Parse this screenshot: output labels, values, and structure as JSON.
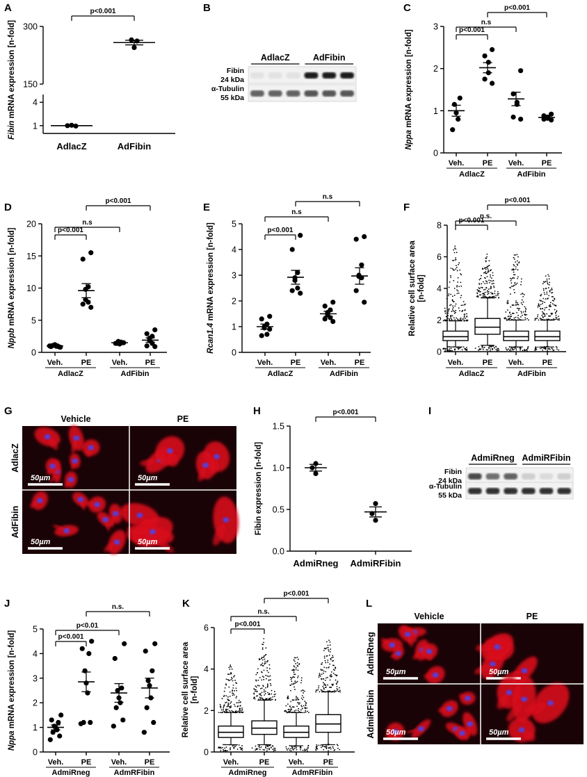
{
  "panel_letters": [
    "A",
    "B",
    "C",
    "D",
    "E",
    "F",
    "G",
    "H",
    "I",
    "J",
    "K",
    "L"
  ],
  "chart_data": [
    {
      "panel": "A",
      "type": "scatter",
      "ylabel_gene": "Fibin",
      "ylabel_rest": " mRNA expression [n-fold]",
      "categories": [
        "AdlacZ",
        "AdFibin"
      ],
      "axis_break": true,
      "y_ticks_upper": [
        "150",
        "300"
      ],
      "y_ticks_lower": [
        "1",
        "4"
      ],
      "ylim_lower": [
        0,
        5
      ],
      "ylim_upper": [
        150,
        300
      ],
      "series": [
        {
          "points": [
            1.0,
            1.05,
            0.95
          ],
          "mean": 1.0,
          "sem": 0.03
        },
        {
          "points": [
            265,
            262,
            245
          ],
          "mean": 258,
          "sem": 6
        }
      ],
      "comparisons": [
        {
          "from": 0,
          "to": 1,
          "label": "p<0.001"
        }
      ]
    },
    {
      "panel": "C",
      "type": "scatter",
      "ylabel_gene": "Nppa",
      "ylabel_rest": " mRNA expression [n-fold]",
      "conditions": [
        "Veh.",
        "PE",
        "Veh.",
        "PE"
      ],
      "groups": [
        "AdlacZ",
        "AdFibin"
      ],
      "ylim": [
        0,
        3
      ],
      "y_ticks": [
        0,
        1,
        2,
        3
      ],
      "series": [
        {
          "points": [
            1.3,
            1.15,
            0.95,
            0.8,
            0.55
          ],
          "mean": 1.0,
          "sem": 0.13
        },
        {
          "points": [
            2.45,
            2.3,
            2.15,
            1.9,
            1.75,
            1.65
          ],
          "mean": 2.02,
          "sem": 0.12
        },
        {
          "points": [
            1.95,
            1.4,
            1.2,
            1.15,
            0.85,
            0.8
          ],
          "mean": 1.28,
          "sem": 0.16
        },
        {
          "points": [
            0.92,
            0.88,
            0.85,
            0.82,
            0.8,
            0.78
          ],
          "mean": 0.84,
          "sem": 0.03
        }
      ],
      "comparisons": [
        {
          "from": 0,
          "to": 1,
          "label": "p<0.001"
        },
        {
          "from": 0,
          "to": 2,
          "label": "n.s"
        },
        {
          "from": 1,
          "to": 3,
          "label": "p<0.001"
        }
      ]
    },
    {
      "panel": "D",
      "type": "scatter",
      "ylabel_gene": "Nppb",
      "ylabel_rest": " mRNA expression [n-fold]",
      "conditions": [
        "Veh.",
        "PE",
        "Veh.",
        "PE"
      ],
      "groups": [
        "AdlacZ",
        "AdFibin"
      ],
      "ylim": [
        0,
        20
      ],
      "y_ticks": [
        0,
        5,
        10,
        15,
        20
      ],
      "series": [
        {
          "points": [
            0.8,
            0.9,
            1.0,
            1.1,
            1.2,
            0.95,
            1.05,
            0.85,
            1.0
          ],
          "mean": 1.0,
          "sem": 0.05
        },
        {
          "points": [
            15.5,
            14.5,
            10.2,
            9.8,
            8.2,
            7.8,
            7.5,
            7.0
          ],
          "mean": 9.6,
          "sem": 1.1
        },
        {
          "points": [
            1.5,
            1.4,
            1.6,
            1.3,
            1.7,
            1.5,
            1.4
          ],
          "mean": 1.5,
          "sem": 0.05
        },
        {
          "points": [
            3.5,
            2.9,
            2.5,
            2.2,
            1.8,
            1.4,
            1.0,
            0.9
          ],
          "mean": 1.9,
          "sem": 0.35
        }
      ],
      "comparisons": [
        {
          "from": 0,
          "to": 1,
          "label": "p<0.001"
        },
        {
          "from": 0,
          "to": 2,
          "label": "n.s"
        },
        {
          "from": 1,
          "to": 3,
          "label": "p<0.001"
        }
      ]
    },
    {
      "panel": "E",
      "type": "scatter",
      "ylabel_gene": "Rcan1.4",
      "ylabel_rest": " mRNA expression [n-fold]",
      "conditions": [
        "Veh.",
        "PE",
        "Veh.",
        "PE"
      ],
      "groups": [
        "AdlacZ",
        "AdFibin"
      ],
      "ylim": [
        0,
        5
      ],
      "y_ticks": [
        0,
        1,
        2,
        3,
        4,
        5
      ],
      "series": [
        {
          "points": [
            1.4,
            1.3,
            1.1,
            1.0,
            0.95,
            0.7,
            0.65,
            0.9
          ],
          "mean": 1.0,
          "sem": 0.1
        },
        {
          "points": [
            4.55,
            4.0,
            3.1,
            2.9,
            2.8,
            2.5,
            2.4,
            2.3
          ],
          "mean": 2.92,
          "sem": 0.27
        },
        {
          "points": [
            1.95,
            1.8,
            1.65,
            1.55,
            1.45,
            1.35,
            1.3,
            1.2
          ],
          "mean": 1.5,
          "sem": 0.1
        },
        {
          "points": [
            4.5,
            4.4,
            3.4,
            3.0,
            2.95,
            2.9,
            2.4,
            1.95
          ],
          "mean": 2.97,
          "sem": 0.32
        }
      ],
      "comparisons": [
        {
          "from": 0,
          "to": 1,
          "label": "p<0.001"
        },
        {
          "from": 0,
          "to": 2,
          "label": "n.s"
        },
        {
          "from": 1,
          "to": 3,
          "label": "n.s"
        }
      ]
    },
    {
      "panel": "F",
      "type": "box",
      "ylabel": "Relative cell surface area",
      "ylabel2": "[n-fold]",
      "conditions": [
        "Veh.",
        "PE",
        "Veh.",
        "PE"
      ],
      "groups": [
        "AdlacZ",
        "AdFibin"
      ],
      "ylim": [
        0,
        8
      ],
      "y_ticks": [
        0,
        2,
        4,
        6,
        8
      ],
      "boxes": [
        {
          "whisker_low": 0.3,
          "q1": 0.7,
          "median": 0.95,
          "q3": 1.3,
          "whisker_high": 1.95,
          "outlier_max": 6.7
        },
        {
          "whisker_low": 0.4,
          "q1": 1.1,
          "median": 1.55,
          "q3": 2.1,
          "whisker_high": 3.4,
          "outlier_max": 6.2
        },
        {
          "whisker_low": 0.3,
          "q1": 0.7,
          "median": 0.95,
          "q3": 1.3,
          "whisker_high": 2.0,
          "outlier_max": 6.2
        },
        {
          "whisker_low": 0.3,
          "q1": 0.7,
          "median": 0.95,
          "q3": 1.3,
          "whisker_high": 2.0,
          "outlier_max": 5.0
        }
      ],
      "comparisons": [
        {
          "from": 0,
          "to": 1,
          "label": "p<0.001"
        },
        {
          "from": 0,
          "to": 2,
          "label": "n.s."
        },
        {
          "from": 1,
          "to": 3,
          "label": "p<0.001"
        }
      ]
    },
    {
      "panel": "H",
      "type": "scatter",
      "ylabel": "Fibin expression [n-fold]",
      "categories": [
        "AdmiRneg",
        "AdmiRFibin"
      ],
      "ylim": [
        0,
        1.5
      ],
      "y_ticks": [
        "0.0",
        "0.5",
        "1.0",
        "1.5"
      ],
      "series": [
        {
          "points": [
            1.05,
            1.0,
            0.93
          ],
          "mean": 1.0,
          "sem": 0.04
        },
        {
          "points": [
            0.57,
            0.45,
            0.37
          ],
          "mean": 0.47,
          "sem": 0.06
        }
      ],
      "comparisons": [
        {
          "from": 0,
          "to": 1,
          "label": "p<0.001"
        }
      ]
    },
    {
      "panel": "J",
      "type": "scatter",
      "ylabel_gene": "Nppa",
      "ylabel_rest": " mRNA expression [n-fold]",
      "conditions": [
        "Veh.",
        "PE",
        "Veh.",
        "PE"
      ],
      "groups": [
        "AdmiRneg",
        "AdmRFibin"
      ],
      "ylim": [
        0,
        5
      ],
      "y_ticks": [
        0,
        1,
        2,
        3,
        4,
        5
      ],
      "series": [
        {
          "points": [
            1.5,
            1.3,
            1.2,
            1.05,
            1.0,
            0.9,
            0.8,
            0.65,
            0.5
          ],
          "mean": 1.0,
          "sem": 0.1
        },
        {
          "points": [
            4.5,
            4.2,
            4.0,
            3.3,
            2.8,
            2.4,
            1.2,
            1.2,
            1.15
          ],
          "mean": 2.85,
          "sem": 0.4
        },
        {
          "points": [
            4.4,
            3.8,
            2.6,
            2.5,
            2.2,
            2.0,
            1.8,
            1.3,
            1.05
          ],
          "mean": 2.4,
          "sem": 0.38
        },
        {
          "points": [
            4.4,
            4.1,
            3.3,
            2.9,
            2.7,
            2.2,
            1.8,
            1.2,
            0.8
          ],
          "mean": 2.6,
          "sem": 0.4
        }
      ],
      "comparisons": [
        {
          "from": 0,
          "to": 1,
          "label": "p<0.001"
        },
        {
          "from": 0,
          "to": 2,
          "label": "p<0.01"
        },
        {
          "from": 1,
          "to": 3,
          "label": "n.s."
        }
      ]
    },
    {
      "panel": "K",
      "type": "box",
      "ylabel": "Relative cell surface area",
      "ylabel2": "[n-fold]",
      "conditions": [
        "Veh.",
        "PE",
        "Veh.",
        "PE"
      ],
      "groups": [
        "AdmiRneg",
        "AdmRFibin"
      ],
      "ylim": [
        0,
        6
      ],
      "y_ticks": [
        0,
        2,
        4,
        6
      ],
      "boxes": [
        {
          "whisker_low": 0.35,
          "q1": 0.7,
          "median": 0.95,
          "q3": 1.25,
          "whisker_high": 1.9,
          "outlier_max": 4.2
        },
        {
          "whisker_low": 0.35,
          "q1": 0.85,
          "median": 1.15,
          "q3": 1.5,
          "whisker_high": 2.5,
          "outlier_max": 5.5
        },
        {
          "whisker_low": 0.3,
          "q1": 0.7,
          "median": 0.95,
          "q3": 1.25,
          "whisker_high": 1.9,
          "outlier_max": 4.6
        },
        {
          "whisker_low": 0.35,
          "q1": 0.95,
          "median": 1.35,
          "q3": 1.8,
          "whisker_high": 2.9,
          "outlier_max": 5.5
        }
      ],
      "comparisons": [
        {
          "from": 0,
          "to": 1,
          "label": "p<0.001"
        },
        {
          "from": 0,
          "to": 2,
          "label": "n.s."
        },
        {
          "from": 1,
          "to": 3,
          "label": "p<0.001"
        }
      ]
    }
  ],
  "blots": {
    "B": {
      "groups": [
        "AdlacZ",
        "AdFibin"
      ],
      "row1_label": [
        "Fibin",
        "24 kDa"
      ],
      "row2_label": [
        "α-Tubulin",
        "55 kDa"
      ],
      "row1_intensity": [
        0.12,
        0.12,
        0.12,
        0.95,
        0.95,
        0.95
      ],
      "row2_intensity": [
        0.65,
        0.65,
        0.65,
        0.7,
        0.7,
        0.7
      ]
    },
    "I": {
      "groups": [
        "AdmiRneg",
        "AdmiRFibin"
      ],
      "row1_label": [
        "Fibin",
        "24 kDa"
      ],
      "row2_label": [
        "α-Tubulin",
        "55 kDa"
      ],
      "row1_intensity": [
        0.75,
        0.6,
        0.65,
        0.2,
        0.15,
        0.2
      ],
      "row2_intensity": [
        0.85,
        0.85,
        0.85,
        0.85,
        0.85,
        0.85
      ]
    }
  },
  "micrographs": {
    "G": {
      "cols": [
        "Vehicle",
        "PE"
      ],
      "rows": [
        "AdlacZ",
        "AdFibin"
      ],
      "scale_label": "50µm"
    },
    "L": {
      "cols": [
        "Vehicle",
        "PE"
      ],
      "rows": [
        "AdmiRneg",
        "AdmiRFibin"
      ],
      "scale_label": "50µm"
    }
  },
  "colors": {
    "cell_fill": "#d8101a",
    "nucleus": "#5a3cd2",
    "background": "#1a0306"
  }
}
